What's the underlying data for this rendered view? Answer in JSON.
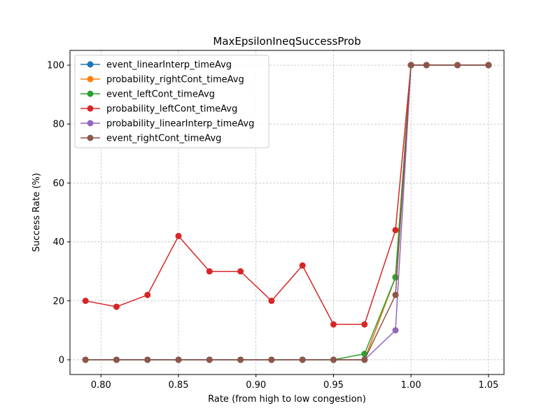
{
  "chart_data": {
    "type": "line",
    "title": "MaxEpsilonIneqSuccessProb",
    "xlabel": "Rate (from high to low congestion)",
    "ylabel": "Success Rate (%)",
    "xlim": [
      0.78,
      1.06
    ],
    "ylim": [
      -5,
      105
    ],
    "xticks": [
      0.8,
      0.85,
      0.9,
      0.95,
      1.0,
      1.05
    ],
    "xtick_labels": [
      "0.80",
      "0.85",
      "0.90",
      "0.95",
      "1.00",
      "1.05"
    ],
    "yticks": [
      0,
      20,
      40,
      60,
      80,
      100
    ],
    "ytick_labels": [
      "0",
      "20",
      "40",
      "60",
      "80",
      "100"
    ],
    "grid": true,
    "legend_position": "upper-left",
    "x": [
      0.79,
      0.81,
      0.83,
      0.85,
      0.87,
      0.89,
      0.91,
      0.93,
      0.95,
      0.97,
      0.99,
      1.0,
      1.01,
      1.03,
      1.05
    ],
    "series": [
      {
        "name": "event_linearInterp_timeAvg",
        "color": "#1f77b4",
        "values": [
          0,
          0,
          0,
          0,
          0,
          0,
          0,
          0,
          0,
          0,
          28,
          100,
          100,
          100,
          100
        ]
      },
      {
        "name": "probability_rightCont_timeAvg",
        "color": "#ff7f0e",
        "values": [
          0,
          0,
          0,
          0,
          0,
          0,
          0,
          0,
          0,
          0,
          28,
          100,
          100,
          100,
          100
        ]
      },
      {
        "name": "event_leftCont_timeAvg",
        "color": "#2ca02c",
        "values": [
          0,
          0,
          0,
          0,
          0,
          0,
          0,
          0,
          0,
          2,
          28,
          100,
          100,
          100,
          100
        ]
      },
      {
        "name": "probability_leftCont_timeAvg",
        "color": "#d62728",
        "values": [
          20,
          18,
          22,
          42,
          30,
          30,
          20,
          32,
          12,
          12,
          44,
          100,
          100,
          100,
          100
        ]
      },
      {
        "name": "probability_linearInterp_timeAvg",
        "color": "#9467bd",
        "values": [
          0,
          0,
          0,
          0,
          0,
          0,
          0,
          0,
          0,
          0,
          10,
          100,
          100,
          100,
          100
        ]
      },
      {
        "name": "event_rightCont_timeAvg",
        "color": "#8c564b",
        "values": [
          0,
          0,
          0,
          0,
          0,
          0,
          0,
          0,
          0,
          0,
          22,
          100,
          100,
          100,
          100
        ]
      }
    ]
  }
}
